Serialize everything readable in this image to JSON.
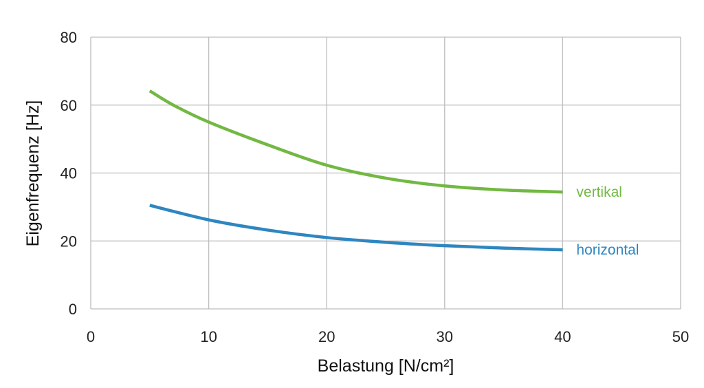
{
  "chart_data": {
    "type": "line",
    "title": "",
    "xlabel": "Belastung [N/cm²]",
    "ylabel": "Eigenfrequenz [Hz]",
    "xlim": [
      0,
      50
    ],
    "ylim": [
      0,
      80
    ],
    "x_ticks": [
      0,
      10,
      20,
      30,
      40,
      50
    ],
    "y_ticks": [
      0,
      20,
      40,
      60,
      80
    ],
    "grid": true,
    "legend": "inline labels at line ends",
    "series": [
      {
        "name": "vertikal",
        "color": "#72b843",
        "x": [
          5,
          7,
          10,
          15,
          20,
          25,
          30,
          35,
          40
        ],
        "y": [
          64.2,
          60,
          55,
          48.3,
          42.3,
          38.5,
          36.2,
          35,
          34.4
        ]
      },
      {
        "name": "horizontal",
        "color": "#2e86c1",
        "x": [
          5,
          10,
          15,
          20,
          25,
          30,
          35,
          40
        ],
        "y": [
          30.5,
          26.2,
          23.2,
          21,
          19.6,
          18.6,
          17.9,
          17.4
        ]
      }
    ]
  }
}
